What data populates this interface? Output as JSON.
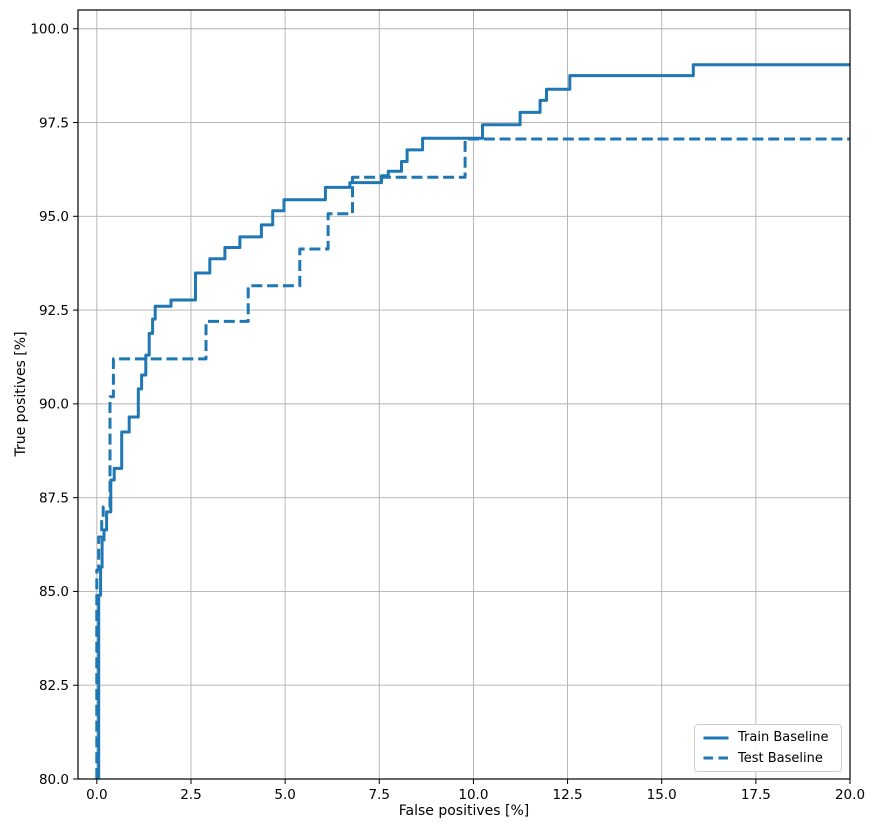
{
  "chart_data": {
    "type": "line",
    "subtype": "step-roc-curve",
    "title": "",
    "xlabel": "False positives [%]",
    "ylabel": "True positives [%]",
    "xlim": [
      -0.5,
      20
    ],
    "ylim": [
      80,
      100.5
    ],
    "grid": true,
    "legend_position": "lower right",
    "x_ticks": [
      0,
      2.5,
      5,
      7.5,
      10,
      12.5,
      15,
      17.5,
      20
    ],
    "x_tick_labels": [
      "0.0",
      "2.5",
      "5.0",
      "7.5",
      "10.0",
      "12.5",
      "15.0",
      "17.5",
      "20.0"
    ],
    "y_ticks": [
      80,
      82.5,
      85,
      87.5,
      90,
      92.5,
      95,
      97.5,
      100
    ],
    "y_tick_labels": [
      "80.0",
      "82.5",
      "85.0",
      "87.5",
      "90.0",
      "92.5",
      "95.0",
      "97.5",
      "100.0"
    ],
    "colors": {
      "line": "#1f77b4",
      "grid": "#b0b0b0",
      "spine": "#000000",
      "text": "#000000"
    },
    "series": [
      {
        "name": "Train Baseline",
        "style": "solid",
        "color": "#1f77b4",
        "points": [
          [
            0.05,
            80
          ],
          [
            0.05,
            84.9
          ],
          [
            0.1,
            84.9
          ],
          [
            0.1,
            85.65
          ],
          [
            0.14,
            85.65
          ],
          [
            0.14,
            86.37
          ],
          [
            0.19,
            86.37
          ],
          [
            0.19,
            86.64
          ],
          [
            0.26,
            86.64
          ],
          [
            0.26,
            87.12
          ],
          [
            0.37,
            87.12
          ],
          [
            0.37,
            87.97
          ],
          [
            0.46,
            87.97
          ],
          [
            0.46,
            88.28
          ],
          [
            0.66,
            88.28
          ],
          [
            0.66,
            89.25
          ],
          [
            0.86,
            89.25
          ],
          [
            0.86,
            89.65
          ],
          [
            1.1,
            89.65
          ],
          [
            1.1,
            90.4
          ],
          [
            1.19,
            90.4
          ],
          [
            1.19,
            90.77
          ],
          [
            1.3,
            90.77
          ],
          [
            1.3,
            91.3
          ],
          [
            1.39,
            91.3
          ],
          [
            1.39,
            91.88
          ],
          [
            1.48,
            91.88
          ],
          [
            1.48,
            92.26
          ],
          [
            1.55,
            92.26
          ],
          [
            1.55,
            92.6
          ],
          [
            1.97,
            92.6
          ],
          [
            1.97,
            92.77
          ],
          [
            2.62,
            92.77
          ],
          [
            2.62,
            93.49
          ],
          [
            3.0,
            93.49
          ],
          [
            3.0,
            93.87
          ],
          [
            3.4,
            93.87
          ],
          [
            3.4,
            94.17
          ],
          [
            3.8,
            94.17
          ],
          [
            3.8,
            94.45
          ],
          [
            4.37,
            94.45
          ],
          [
            4.37,
            94.77
          ],
          [
            4.67,
            94.77
          ],
          [
            4.67,
            95.15
          ],
          [
            4.97,
            95.15
          ],
          [
            4.97,
            95.44
          ],
          [
            6.07,
            95.44
          ],
          [
            6.07,
            95.77
          ],
          [
            6.72,
            95.77
          ],
          [
            6.72,
            95.9
          ],
          [
            7.56,
            95.9
          ],
          [
            7.56,
            96.08
          ],
          [
            7.74,
            96.08
          ],
          [
            7.74,
            96.2
          ],
          [
            8.09,
            96.2
          ],
          [
            8.09,
            96.46
          ],
          [
            8.24,
            96.46
          ],
          [
            8.24,
            96.77
          ],
          [
            8.65,
            96.77
          ],
          [
            8.65,
            97.08
          ],
          [
            10.24,
            97.08
          ],
          [
            10.24,
            97.44
          ],
          [
            11.24,
            97.44
          ],
          [
            11.24,
            97.77
          ],
          [
            11.77,
            97.77
          ],
          [
            11.77,
            98.09
          ],
          [
            11.94,
            98.09
          ],
          [
            11.94,
            98.39
          ],
          [
            12.56,
            98.39
          ],
          [
            12.56,
            98.75
          ],
          [
            15.84,
            98.75
          ],
          [
            15.84,
            99.04
          ],
          [
            20,
            99.04
          ]
        ]
      },
      {
        "name": "Test Baseline",
        "style": "dashed",
        "color": "#1f77b4",
        "points": [
          [
            0.0,
            80
          ],
          [
            0.0,
            85.57
          ],
          [
            0.05,
            85.57
          ],
          [
            0.05,
            86.45
          ],
          [
            0.13,
            86.45
          ],
          [
            0.13,
            86.99
          ],
          [
            0.17,
            86.99
          ],
          [
            0.17,
            87.25
          ],
          [
            0.35,
            87.25
          ],
          [
            0.35,
            90.19
          ],
          [
            0.44,
            90.19
          ],
          [
            0.44,
            91.2
          ],
          [
            2.9,
            91.2
          ],
          [
            2.9,
            92.2
          ],
          [
            4.02,
            92.2
          ],
          [
            4.02,
            93.15
          ],
          [
            5.39,
            93.15
          ],
          [
            5.39,
            94.13
          ],
          [
            6.14,
            94.13
          ],
          [
            6.14,
            95.07
          ],
          [
            6.79,
            95.07
          ],
          [
            6.79,
            96.04
          ],
          [
            9.78,
            96.04
          ],
          [
            9.78,
            97.06
          ],
          [
            20,
            97.06
          ]
        ]
      }
    ]
  }
}
